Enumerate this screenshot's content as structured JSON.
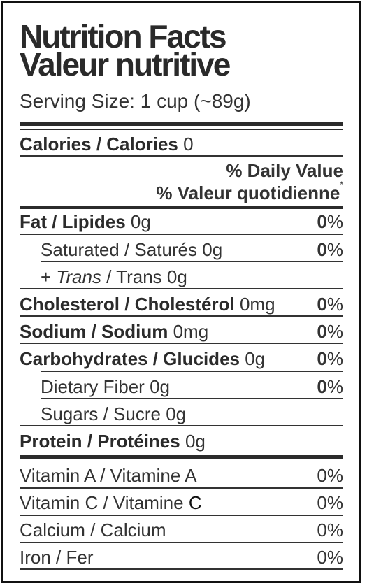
{
  "title_en": "Nutrition Facts",
  "title_fr": "Valeur nutritive",
  "serving": {
    "label": "Serving Size:",
    "value": "1 cup (~89g)"
  },
  "calories": {
    "label": "Calories / Calories",
    "value": "0"
  },
  "daily_value": {
    "en": "% Daily Value",
    "fr": "% Valeur quotidienne",
    "mark": "*"
  },
  "nutrients": [
    {
      "label": "Fat / Lipides",
      "amount": "0g",
      "pct_num": "0",
      "pct_sign": "%"
    },
    {
      "label": "Saturated / Saturés",
      "amount": "0g",
      "pct_num": "0",
      "pct_sign": "%"
    },
    {
      "prefix": "+ ",
      "label_italic": "Trans",
      "label_rest": " / Trans",
      "amount": "0g"
    },
    {
      "label": "Cholesterol / Cholestérol",
      "amount": "0mg",
      "pct_num": "0",
      "pct_sign": "%"
    },
    {
      "label": "Sodium / Sodium",
      "amount": "0mg",
      "pct_num": "0",
      "pct_sign": "%"
    },
    {
      "label": "Carbohydrates / Glucides",
      "amount": "0g",
      "pct_num": "0",
      "pct_sign": "%"
    },
    {
      "label": "Dietary Fiber",
      "amount": "0g",
      "pct_num": "0",
      "pct_sign": "%"
    },
    {
      "label": "Sugars / Sucre",
      "amount": "0g"
    },
    {
      "label": "Protein / Protéines",
      "amount": "0g"
    }
  ],
  "vitamins": [
    {
      "label": "Vitamin A / Vitamine A",
      "pct": "0%"
    },
    {
      "label": "Vitamin C / Vitamine",
      "label_end": "C",
      "pct": "0%"
    },
    {
      "label": "Calcium / Calcium",
      "pct": "0%"
    },
    {
      "label": "Iron / Fer",
      "pct": "0%"
    }
  ]
}
